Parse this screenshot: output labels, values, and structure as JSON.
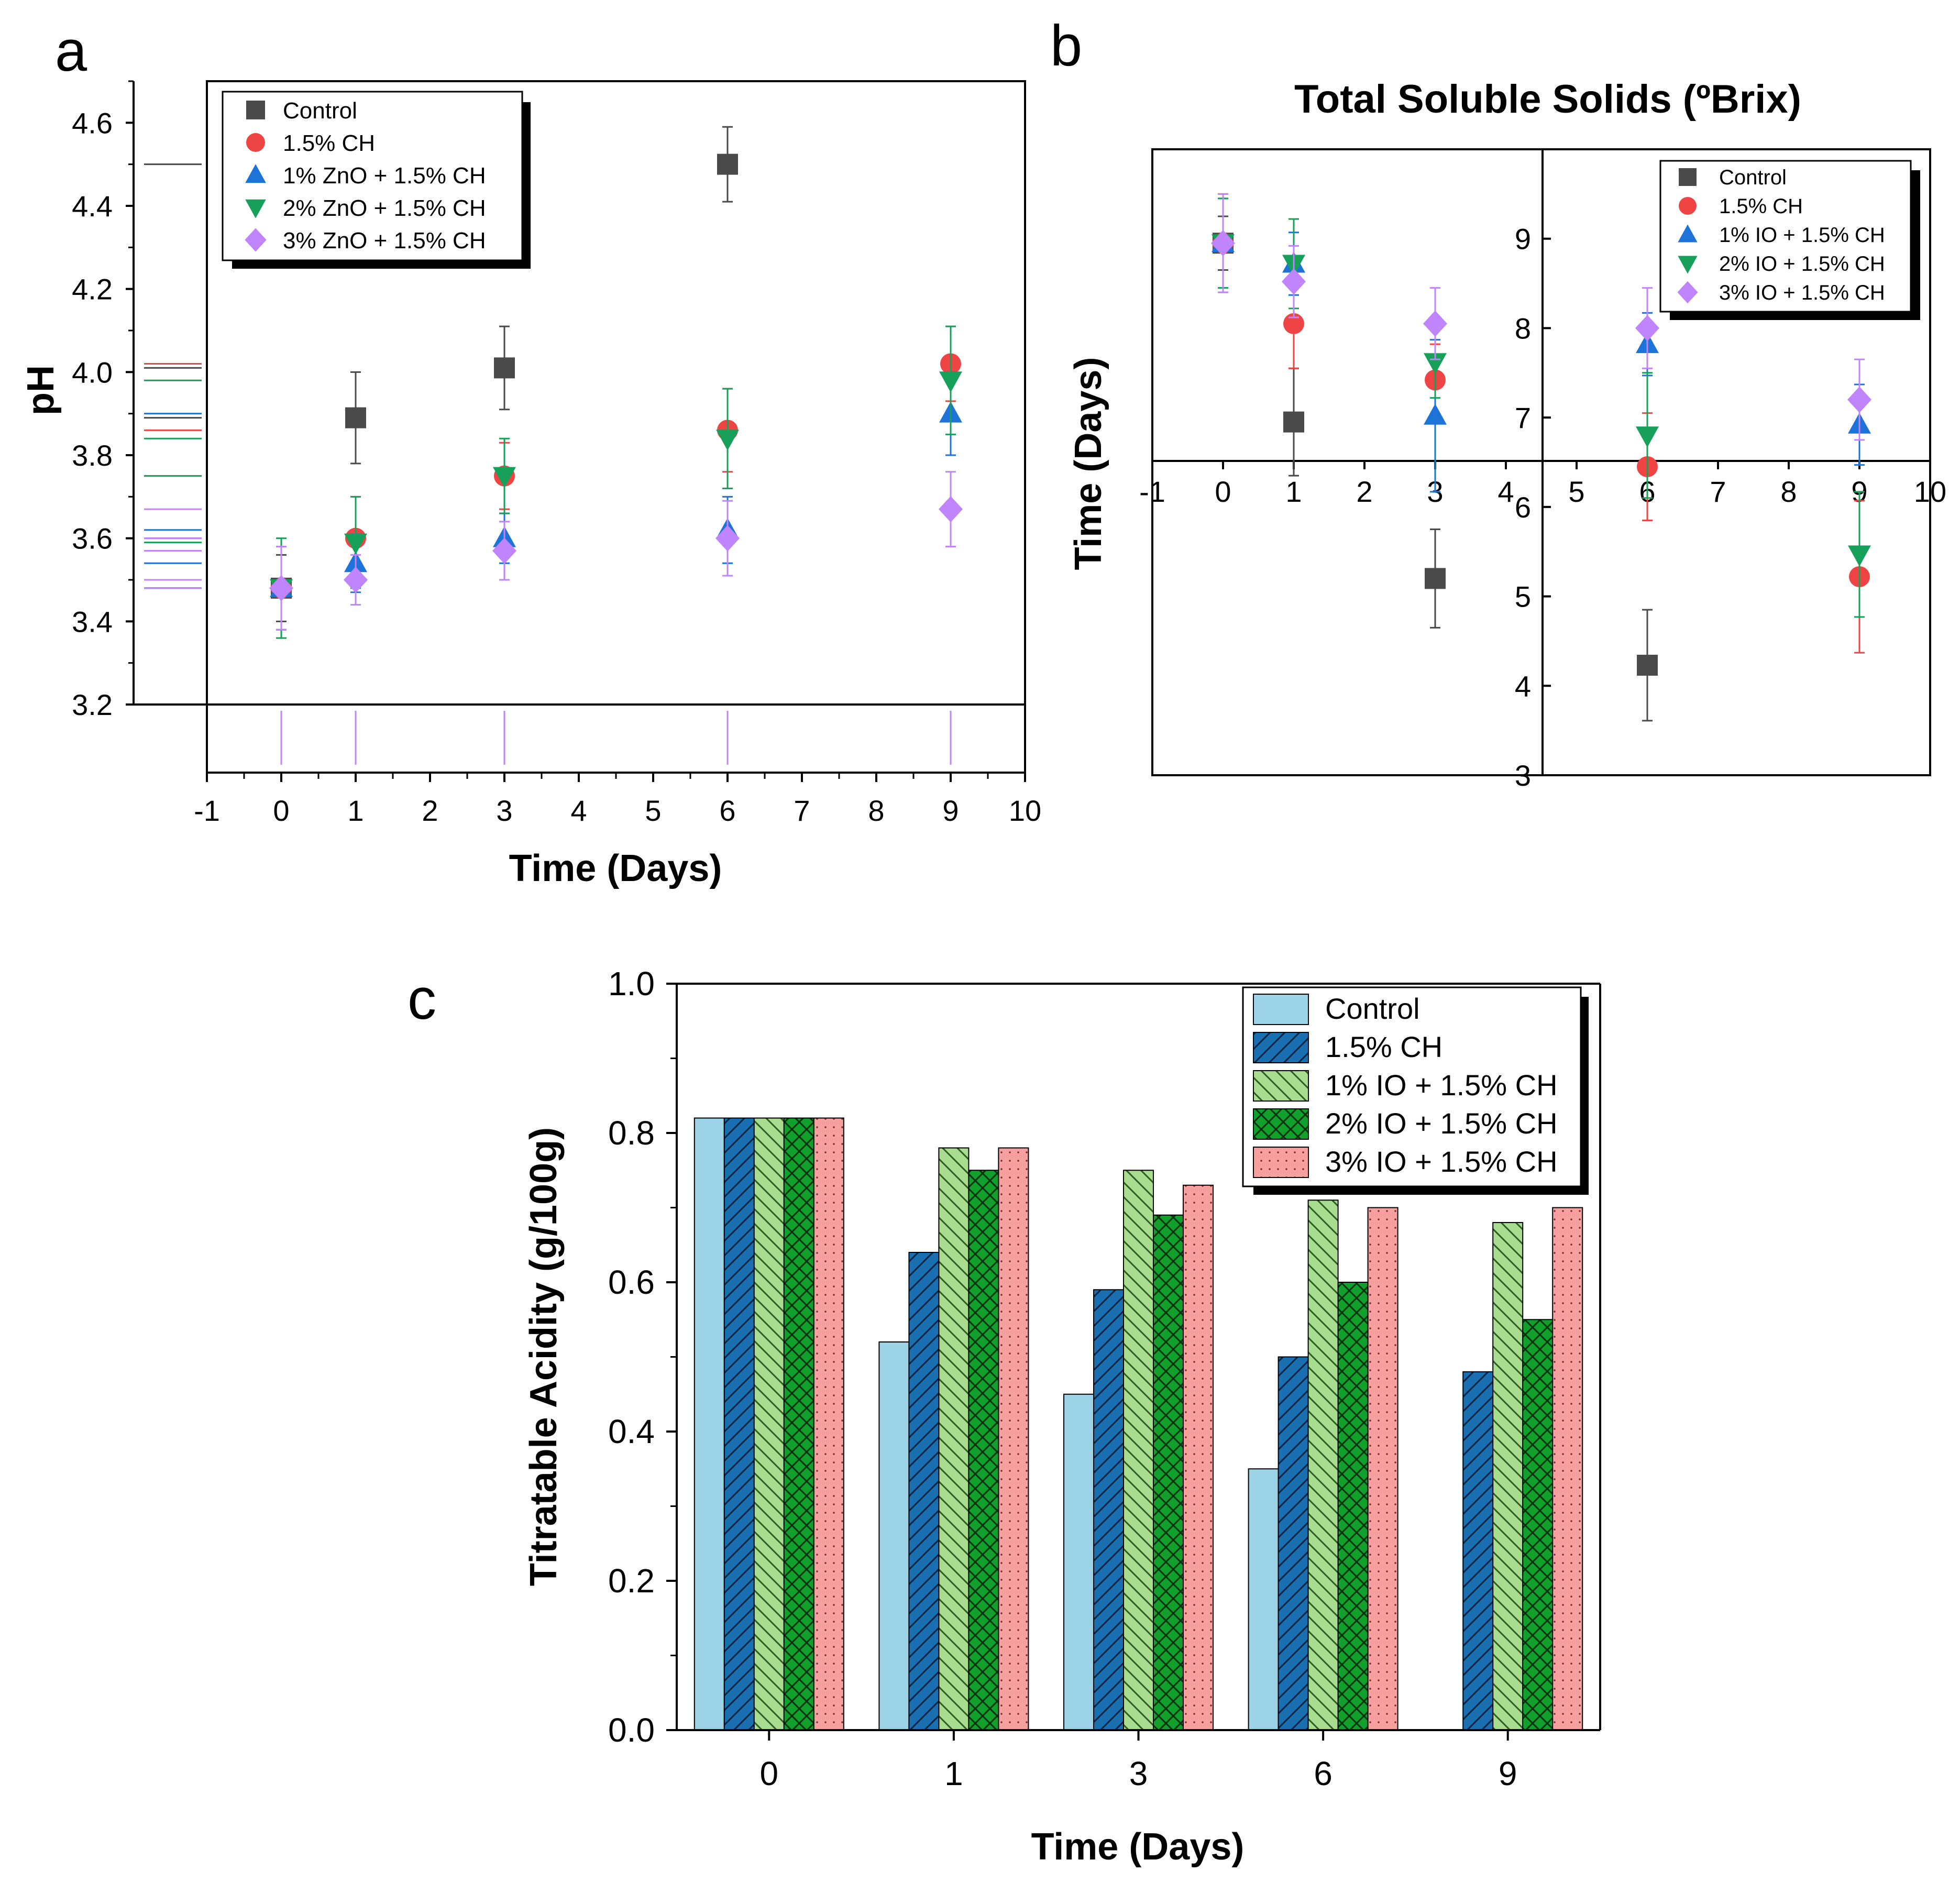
{
  "colors": {
    "control": "#4a4a4a",
    "ch": "#ef4444",
    "zno1": "#1e73d8",
    "zno2": "#16a05a",
    "zno3": "#c084fc",
    "bar_control": "#9dd3e6",
    "bar_ch": "#1a6fb0",
    "bar_io1": "#a8dc8f",
    "bar_io2": "#12a02c",
    "bar_io3": "#f6a0a0"
  },
  "panels": {
    "a": "a",
    "b": "b",
    "c": "c"
  },
  "chart_data": [
    {
      "id": "a",
      "type": "scatter",
      "title": "",
      "xlabel": "Time (Days)",
      "ylabel": "pH",
      "xlim": [
        -1,
        10
      ],
      "ylim": [
        3.2,
        4.7
      ],
      "x_ticks": [
        -1,
        0,
        1,
        2,
        3,
        4,
        5,
        6,
        7,
        8,
        9,
        10
      ],
      "y_ticks": [
        3.2,
        3.4,
        3.6,
        3.8,
        4.0,
        4.2,
        4.4,
        4.6
      ],
      "legend_position": "top-left",
      "series": [
        {
          "name": "Control",
          "marker": "square",
          "color_key": "control",
          "x": [
            0,
            1,
            3,
            6
          ],
          "y": [
            3.48,
            3.89,
            4.01,
            4.5
          ],
          "err": [
            0.08,
            0.11,
            0.1,
            0.09
          ]
        },
        {
          "name": "1.5% CH",
          "marker": "circle",
          "color_key": "ch",
          "x": [
            0,
            1,
            3,
            6,
            9
          ],
          "y": [
            3.48,
            3.6,
            3.75,
            3.86,
            4.02
          ],
          "err": [
            0.1,
            0.1,
            0.08,
            0.1,
            0.09
          ]
        },
        {
          "name": "1% ZnO + 1.5% CH",
          "marker": "triangle-up",
          "color_key": "zno1",
          "x": [
            0,
            1,
            3,
            6,
            9
          ],
          "y": [
            3.48,
            3.54,
            3.6,
            3.62,
            3.9
          ],
          "err": [
            0.1,
            0.07,
            0.06,
            0.08,
            0.1
          ]
        },
        {
          "name": "2% ZnO + 1.5% CH",
          "marker": "triangle-down",
          "color_key": "zno2",
          "x": [
            0,
            1,
            3,
            6,
            9
          ],
          "y": [
            3.48,
            3.59,
            3.75,
            3.84,
            3.98
          ],
          "err": [
            0.12,
            0.11,
            0.09,
            0.12,
            0.13
          ]
        },
        {
          "name": "3% ZnO + 1.5% CH",
          "marker": "diamond",
          "color_key": "zno3",
          "x": [
            0,
            1,
            3,
            6,
            9
          ],
          "y": [
            3.48,
            3.5,
            3.57,
            3.6,
            3.67
          ],
          "err": [
            0.1,
            0.06,
            0.07,
            0.09,
            0.09
          ]
        }
      ]
    },
    {
      "id": "b",
      "type": "scatter",
      "title": "Total Soluble Solids (ºBrix)",
      "xlabel": "",
      "ylabel": "Time (Days)",
      "xlim": [
        -1,
        10
      ],
      "ylim": [
        3,
        10
      ],
      "x_ticks": [
        -1,
        0,
        1,
        2,
        3,
        4,
        5,
        6,
        7,
        8,
        9,
        10
      ],
      "y_ticks": [
        3,
        4,
        5,
        6,
        7,
        8,
        9
      ],
      "legend_position": "top-right",
      "series": [
        {
          "name": "Control",
          "marker": "square",
          "color_key": "control",
          "x": [
            0,
            1,
            3,
            6
          ],
          "y": [
            8.95,
            6.95,
            5.2,
            4.23
          ],
          "err": [
            0.3,
            0.6,
            0.55,
            0.62
          ]
        },
        {
          "name": "1.5% CH",
          "marker": "circle",
          "color_key": "ch",
          "x": [
            0,
            1,
            3,
            6,
            9
          ],
          "y": [
            8.95,
            8.05,
            7.42,
            6.45,
            5.22
          ],
          "err": [
            0.55,
            0.5,
            0.4,
            0.6,
            0.85
          ]
        },
        {
          "name": "1% IO + 1.5% CH",
          "marker": "triangle-up",
          "color_key": "zno1",
          "x": [
            0,
            1,
            3,
            6,
            9
          ],
          "y": [
            8.95,
            8.72,
            7.02,
            7.82,
            6.92
          ],
          "err": [
            0.5,
            0.35,
            0.85,
            0.35,
            0.45
          ]
        },
        {
          "name": "2% IO + 1.5% CH",
          "marker": "triangle-down",
          "color_key": "zno2",
          "x": [
            0,
            1,
            3,
            6,
            9
          ],
          "y": [
            8.95,
            8.72,
            7.62,
            6.8,
            5.47
          ],
          "err": [
            0.5,
            0.5,
            0.4,
            0.7,
            0.7
          ]
        },
        {
          "name": "3% IO + 1.5% CH",
          "marker": "diamond",
          "color_key": "zno3",
          "x": [
            0,
            1,
            3,
            6,
            9
          ],
          "y": [
            8.95,
            8.52,
            8.05,
            8.0,
            7.2
          ],
          "err": [
            0.55,
            0.4,
            0.4,
            0.45,
            0.45
          ]
        }
      ]
    },
    {
      "id": "c",
      "type": "bar",
      "title": "",
      "xlabel": "Time (Days)",
      "ylabel": "Titratable Acidity (g/100g)",
      "ylim": [
        0,
        1.0
      ],
      "y_ticks": [
        "0.0",
        "0.2",
        "0.4",
        "0.6",
        "0.8",
        "1.0"
      ],
      "categories": [
        "0",
        "1",
        "3",
        "6",
        "9"
      ],
      "legend_position": "top-right",
      "series": [
        {
          "name": "Control",
          "color_key": "bar_control",
          "pattern": "none",
          "values": [
            0.82,
            0.52,
            0.45,
            0.35,
            null
          ]
        },
        {
          "name": "1.5% CH",
          "color_key": "bar_ch",
          "pattern": "diag-right",
          "values": [
            0.82,
            0.64,
            0.59,
            0.5,
            0.48
          ]
        },
        {
          "name": "1% IO + 1.5% CH",
          "color_key": "bar_io1",
          "pattern": "diag-left",
          "values": [
            0.82,
            0.78,
            0.75,
            0.71,
            0.68
          ]
        },
        {
          "name": "2% IO + 1.5% CH",
          "color_key": "bar_io2",
          "pattern": "cross",
          "values": [
            0.82,
            0.75,
            0.69,
            0.6,
            0.55
          ]
        },
        {
          "name": "3% IO + 1.5% CH",
          "color_key": "bar_io3",
          "pattern": "dots",
          "values": [
            0.82,
            0.78,
            0.73,
            0.7,
            0.7
          ]
        }
      ]
    }
  ]
}
